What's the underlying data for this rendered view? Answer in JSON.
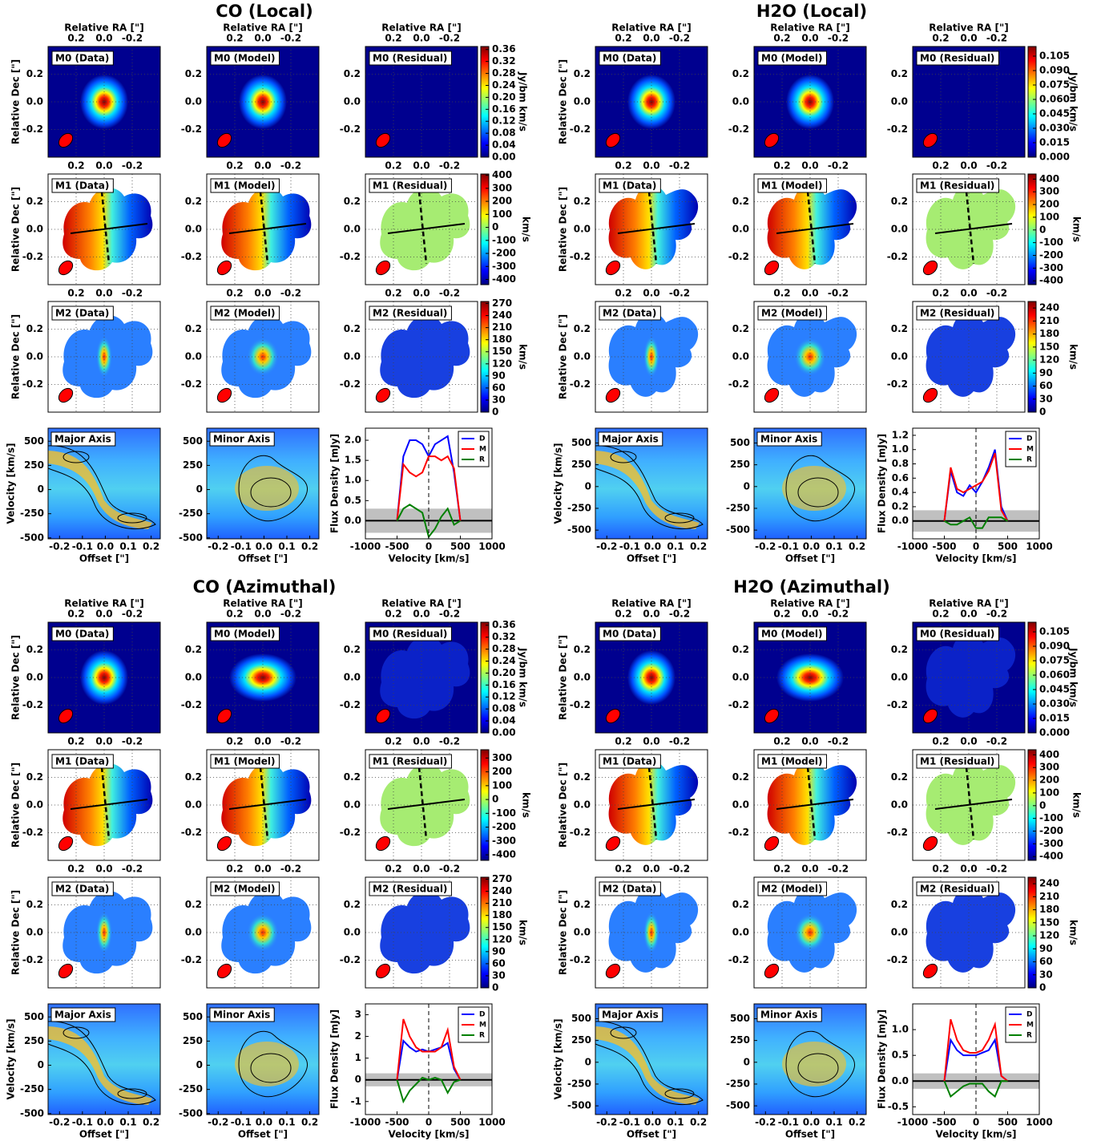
{
  "chart_data": {
    "type": "moment-panel-figure",
    "ra_label": "Relative RA [\"]",
    "dec_label": "Relative Dec [\"]",
    "map_lim": [
      -0.4,
      0.4
    ],
    "map_ticks": [
      0.2,
      {
        "value": 0,
        "label": "0.0"
      },
      -0.2
    ],
    "panel_labels": [
      [
        "M0 (Data)",
        "M0 (Model)",
        "M0 (Residual)"
      ],
      [
        "M1 (Data)",
        "M1 (Model)",
        "M1 (Residual)"
      ],
      [
        "M2 (Data)",
        "M2 (Model)",
        "M2 (Residual)"
      ]
    ],
    "cbar_labels": [
      "Jy/bm km/s",
      "km/s"
    ],
    "pv_labels": [
      "Major Axis",
      "Minor Axis"
    ],
    "offset_label": "Offset [\"]",
    "velocity_label": "Velocity [km/s]",
    "flux_label": "Flux Density [mJy]",
    "pv_xlim": [
      -0.25,
      0.24
    ],
    "pv_xticks": [
      -0.2,
      -0.1,
      {
        "value": 0,
        "label": "0.0"
      },
      0.1,
      0.2
    ],
    "pv_yticks": [
      -500,
      -250,
      0,
      250,
      500
    ],
    "spec_xlim": [
      -1000,
      1000
    ],
    "spec_xticks": [
      -1000,
      -500,
      0,
      500,
      1000
    ],
    "spectrum_x": [
      -500,
      -400,
      -300,
      -200,
      -100,
      0,
      100,
      200,
      300,
      400,
      500
    ],
    "groups": [
      {
        "title": "CO (Local)",
        "colorbars": [
          {
            "lim": [
              0,
              0.37
            ],
            "ticks": [
              {
                "value": 0,
                "label": "0.00"
              },
              0.04,
              0.08,
              0.12,
              0.16,
              {
                "value": 0.2,
                "label": "0.20"
              },
              0.24,
              0.28,
              0.32,
              0.36
            ]
          },
          {
            "lim": [
              -440,
              410
            ],
            "ticks": [
              -400,
              -300,
              -200,
              -100,
              0,
              100,
              200,
              300,
              400
            ]
          },
          {
            "lim": [
              0,
              275
            ],
            "ticks": [
              0,
              30,
              60,
              90,
              120,
              150,
              180,
              210,
              240,
              270
            ]
          }
        ],
        "pv_ylim": [
          -510,
          635
        ],
        "spectrum": {
          "ylim": [
            -0.45,
            2.3
          ],
          "yticks": [
            {
              "value": 0,
              "label": "0.0"
            },
            0.5,
            {
              "value": 1,
              "label": "1.0"
            },
            1.5,
            {
              "value": 2,
              "label": "2.0"
            }
          ],
          "noise": 0.3,
          "series": [
            {
              "name": "D",
              "color": "#0000ff",
              "values": [
                0,
                1.6,
                2.0,
                2.0,
                1.9,
                1.6,
                1.9,
                2.0,
                2.1,
                1.2,
                0
              ]
            },
            {
              "name": "M",
              "color": "#ff0000",
              "values": [
                0,
                1.4,
                1.2,
                1.1,
                1.2,
                1.6,
                1.6,
                1.5,
                1.6,
                1.3,
                0
              ]
            },
            {
              "name": "R",
              "color": "#008000",
              "values": [
                0,
                0.3,
                0.4,
                0.3,
                0.2,
                -0.4,
                -0.2,
                0.1,
                0.3,
                -0.1,
                0
              ]
            }
          ]
        }
      },
      {
        "title": "H2O (Local)",
        "colorbars": [
          {
            "lim": [
              0,
              0.115
            ],
            "ticks": [
              {
                "value": 0,
                "label": "0.000"
              },
              0.015,
              {
                "value": 0.03,
                "label": "0.030"
              },
              0.045,
              {
                "value": 0.06,
                "label": "0.060"
              },
              0.075,
              {
                "value": 0.09,
                "label": "0.090"
              },
              0.105
            ]
          },
          {
            "lim": [
              -430,
              440
            ],
            "ticks": [
              -400,
              -300,
              -200,
              -100,
              0,
              100,
              200,
              300,
              400
            ]
          },
          {
            "lim": [
              0,
              255
            ],
            "ticks": [
              0,
              30,
              60,
              90,
              120,
              150,
              180,
              210,
              240
            ]
          }
        ],
        "pv_ylim": [
          -600,
          670
        ],
        "spectrum": {
          "ylim": [
            -0.25,
            1.3
          ],
          "yticks": [
            {
              "value": 0,
              "label": "0.0"
            },
            0.2,
            0.4,
            0.6,
            0.8,
            {
              "value": 1,
              "label": "1.0"
            },
            1.2
          ],
          "noise": 0.15,
          "series": [
            {
              "name": "D",
              "color": "#0000ff",
              "values": [
                0,
                0.7,
                0.4,
                0.35,
                0.5,
                0.4,
                0.55,
                0.75,
                1.0,
                0.2,
                0
              ]
            },
            {
              "name": "M",
              "color": "#ff0000",
              "values": [
                0,
                0.75,
                0.45,
                0.4,
                0.45,
                0.5,
                0.55,
                0.7,
                0.95,
                0.15,
                0
              ]
            },
            {
              "name": "R",
              "color": "#008000",
              "values": [
                0,
                -0.05,
                -0.05,
                0,
                0.05,
                -0.1,
                -0.1,
                0.05,
                0.05,
                0.05,
                0
              ]
            }
          ]
        }
      },
      {
        "title": "CO (Azimuthal)",
        "colorbars": [
          {
            "lim": [
              0,
              0.37
            ],
            "ticks": [
              {
                "value": 0,
                "label": "0.00"
              },
              0.04,
              0.08,
              0.12,
              0.16,
              {
                "value": 0.2,
                "label": "0.20"
              },
              0.24,
              0.28,
              0.32,
              0.36
            ]
          },
          {
            "lim": [
              -440,
              360
            ],
            "ticks": [
              -400,
              -300,
              -200,
              -100,
              0,
              100,
              200,
              300
            ]
          },
          {
            "lim": [
              0,
              275
            ],
            "ticks": [
              0,
              30,
              60,
              90,
              120,
              150,
              180,
              210,
              240,
              270
            ]
          }
        ],
        "pv_ylim": [
          -510,
          635
        ],
        "spectrum": {
          "ylim": [
            -1.6,
            3.5
          ],
          "yticks": [
            -1,
            0,
            1,
            2,
            3
          ],
          "noise": 0.3,
          "series": [
            {
              "name": "D",
              "color": "#0000ff",
              "values": [
                0,
                1.8,
                1.5,
                1.3,
                1.4,
                1.3,
                1.4,
                1.5,
                1.7,
                0.5,
                0
              ]
            },
            {
              "name": "M",
              "color": "#ff0000",
              "values": [
                0,
                2.8,
                2.0,
                1.5,
                1.3,
                1.3,
                1.3,
                1.5,
                2.3,
                0.6,
                0
              ]
            },
            {
              "name": "R",
              "color": "#008000",
              "values": [
                0,
                -1.0,
                -0.5,
                -0.2,
                0.1,
                0,
                0.1,
                0,
                -0.6,
                -0.1,
                0
              ]
            }
          ]
        }
      },
      {
        "title": "H2O (Azimuthal)",
        "colorbars": [
          {
            "lim": [
              0,
              0.115
            ],
            "ticks": [
              {
                "value": 0,
                "label": "0.000"
              },
              0.015,
              {
                "value": 0.03,
                "label": "0.030"
              },
              0.045,
              {
                "value": 0.06,
                "label": "0.060"
              },
              0.075,
              {
                "value": 0.09,
                "label": "0.090"
              },
              0.105
            ]
          },
          {
            "lim": [
              -430,
              440
            ],
            "ticks": [
              -400,
              -300,
              -200,
              -100,
              0,
              100,
              200,
              300,
              400
            ]
          },
          {
            "lim": [
              0,
              255
            ],
            "ticks": [
              0,
              30,
              60,
              90,
              120,
              150,
              180,
              210,
              240
            ]
          }
        ],
        "pv_ylim": [
          -600,
          670
        ],
        "spectrum": {
          "ylim": [
            -0.65,
            1.5
          ],
          "yticks": [
            -0.5,
            {
              "value": 0,
              "label": "0.0"
            },
            0.5,
            {
              "value": 1,
              "label": "1.0"
            }
          ],
          "noise": 0.15,
          "series": [
            {
              "name": "D",
              "color": "#0000ff",
              "values": [
                0,
                0.8,
                0.6,
                0.5,
                0.5,
                0.5,
                0.55,
                0.6,
                0.8,
                0.1,
                0
              ]
            },
            {
              "name": "M",
              "color": "#ff0000",
              "values": [
                0,
                1.2,
                0.8,
                0.6,
                0.55,
                0.55,
                0.6,
                0.8,
                1.1,
                0.1,
                0
              ]
            },
            {
              "name": "R",
              "color": "#008000",
              "values": [
                0,
                -0.3,
                -0.2,
                -0.1,
                -0.05,
                -0.05,
                -0.05,
                -0.2,
                -0.3,
                0,
                0
              ]
            }
          ]
        }
      }
    ]
  }
}
